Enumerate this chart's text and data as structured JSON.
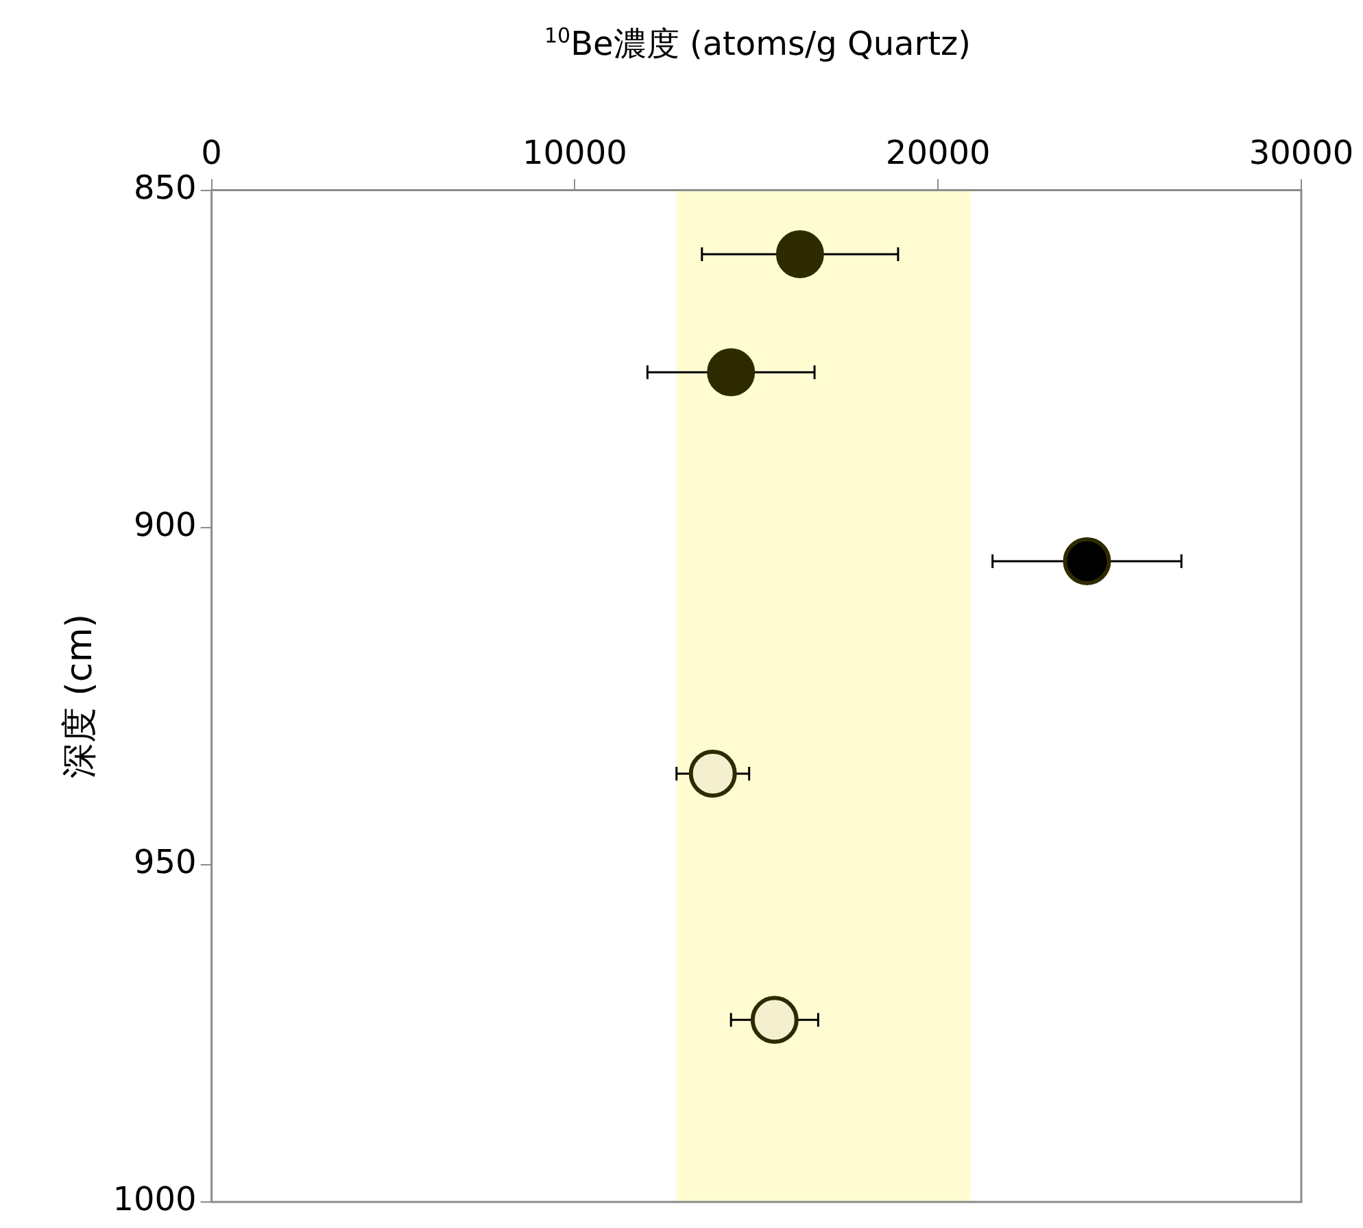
{
  "chart_data": {
    "type": "scatter",
    "xlabel": "$^{10}$Be濃度 (atoms/g Quartz)",
    "ylabel": "深度 (cm)",
    "xlim": [
      0,
      30000
    ],
    "xticks": [
      0,
      10000,
      20000,
      30000
    ],
    "ylim": [
      1000,
      850
    ],
    "yticks": [
      850,
      900,
      950,
      1000
    ],
    "grid": false,
    "legend": false,
    "marker": "circle",
    "bands": [
      {
        "axis": "x",
        "from": 12800,
        "to": 20900,
        "color": "#fffcd2"
      }
    ],
    "series": [
      {
        "color": "#2e2a00",
        "x": [
          16200,
          14300
        ],
        "values": [
          859.5,
          877
        ],
        "xerrors": [
          2700,
          2300
        ]
      },
      {
        "color": "#000000",
        "x": [
          24100
        ],
        "values": [
          905
        ],
        "xerrors": [
          2600
        ]
      },
      {
        "color": "#f3efcf",
        "x": [
          13800,
          15500
        ],
        "values": [
          936.5,
          973
        ],
        "xerrors": [
          1000,
          1200
        ]
      }
    ]
  }
}
